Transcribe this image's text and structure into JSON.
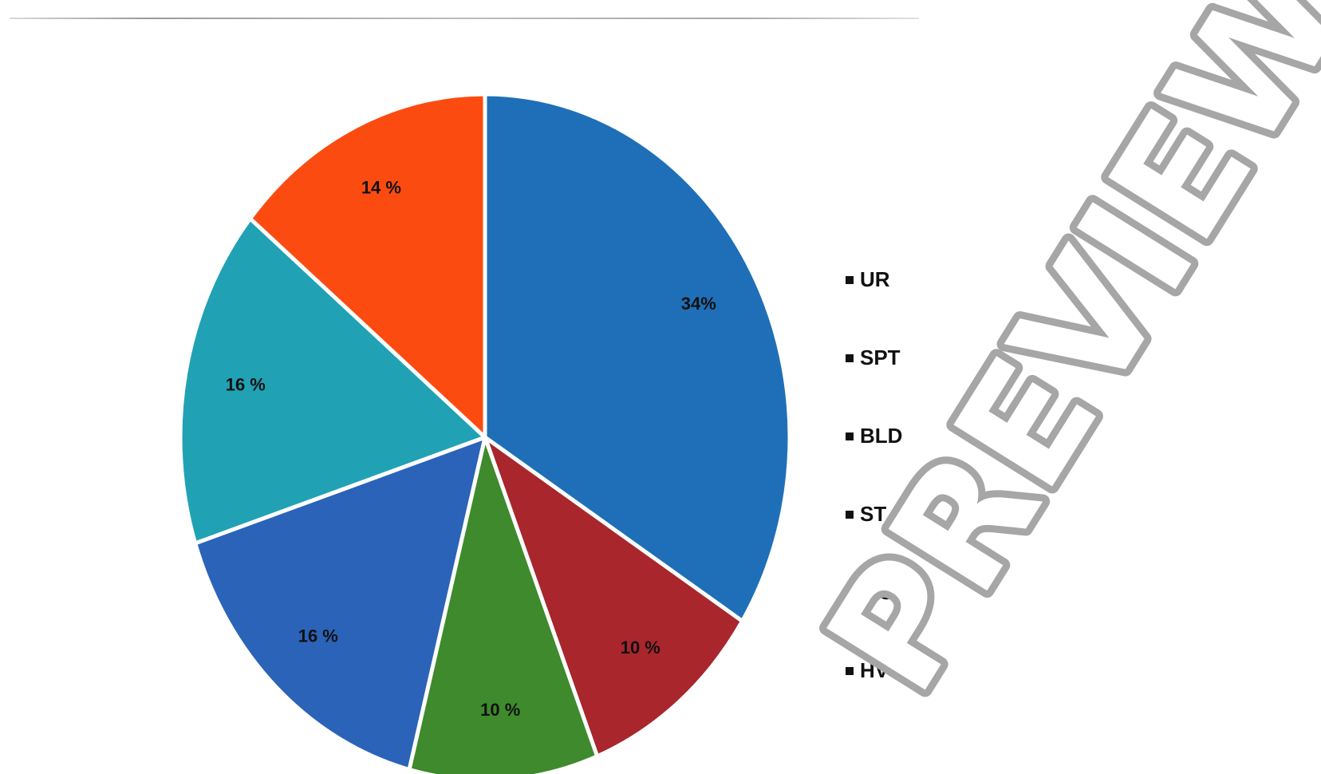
{
  "chart_data": {
    "type": "pie",
    "title": "",
    "slices": [
      {
        "label": "UR",
        "value": 34,
        "value_label": "34%",
        "color": "#1f6fb8"
      },
      {
        "label": "SPT",
        "value": 10,
        "value_label": "10 %",
        "color": "#a8262c"
      },
      {
        "label": "BLD",
        "value": 10,
        "value_label": "10 %",
        "color": "#3e8a2c"
      },
      {
        "label": "ST",
        "value": 16,
        "value_label": "16 %",
        "color": "#2b63b8"
      },
      {
        "label": "WS",
        "value": 16,
        "value_label": "16 %",
        "color": "#20a2b4"
      },
      {
        "label": "HVS",
        "value": 14,
        "value_label": "14 %",
        "color": "#fc4b10"
      }
    ],
    "start_angle_deg": 0,
    "direction": "clockwise",
    "legend_position": "right"
  },
  "watermark": "PREVIEW"
}
